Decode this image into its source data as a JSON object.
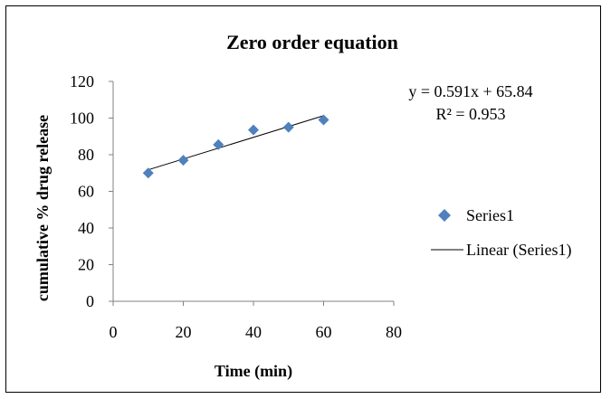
{
  "chart_data": {
    "type": "scatter",
    "title": "Zero order equation",
    "xlabel": "Time (min)",
    "ylabel": "cumulative % drug release",
    "xlim": [
      0,
      80
    ],
    "ylim": [
      0,
      120
    ],
    "x_ticks": [
      "0",
      "20",
      "40",
      "60",
      "80"
    ],
    "y_ticks": [
      "0",
      "20",
      "40",
      "60",
      "80",
      "100",
      "120"
    ],
    "grid": false,
    "legend_position": "right",
    "series": [
      {
        "name": "Series1",
        "marker": "diamond",
        "color": "#4f81bd",
        "x": [
          10,
          20,
          30,
          40,
          50,
          60
        ],
        "y": [
          70,
          77,
          85.5,
          93.5,
          95,
          99
        ]
      }
    ],
    "trendline": {
      "name": "Linear (Series1)",
      "slope": 0.591,
      "intercept": 65.84,
      "x_range": [
        10,
        60
      ],
      "color": "#000000"
    },
    "annotations": {
      "equation": "y = 0.591x + 65.84",
      "r_squared": "R² = 0.953"
    }
  }
}
